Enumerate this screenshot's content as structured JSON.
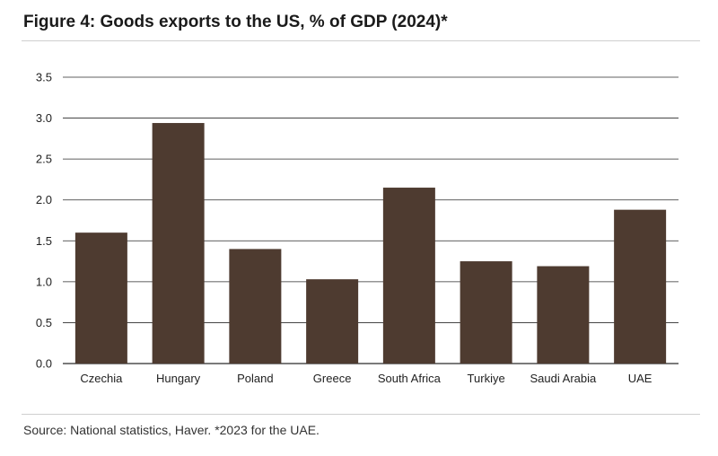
{
  "title": "Figure 4: Goods exports to the US, % of GDP (2024)*",
  "source": "Source: National statistics, Haver. *2023 for the UAE.",
  "colors": {
    "bar": "#4e3b30",
    "grid": "#2b2b2b",
    "rule": "#cfcfcf"
  },
  "chart_data": {
    "type": "bar",
    "title": "Figure 4: Goods exports to the US, % of GDP (2024)*",
    "xlabel": "",
    "ylabel": "",
    "categories": [
      "Czechia",
      "Hungary",
      "Poland",
      "Greece",
      "South Africa",
      "Turkiye",
      "Saudi Arabia",
      "UAE"
    ],
    "values": [
      1.6,
      2.94,
      1.4,
      1.03,
      2.15,
      1.25,
      1.19,
      1.88
    ],
    "ylim": [
      0,
      3.5
    ],
    "yticks": [
      "0.0",
      "0.5",
      "1.0",
      "1.5",
      "2.0",
      "2.5",
      "3.0",
      "3.5"
    ],
    "grid": true,
    "legend": "none"
  }
}
